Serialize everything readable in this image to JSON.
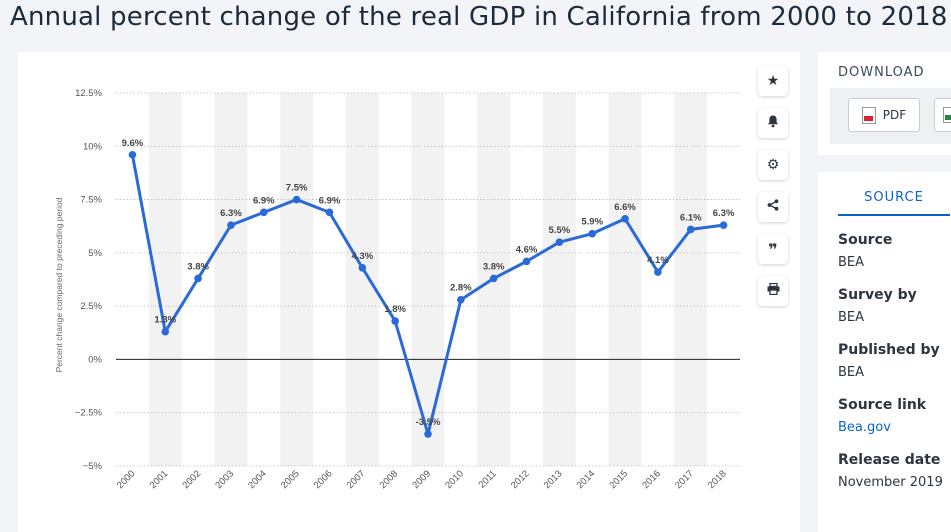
{
  "title": "Annual percent change of the real GDP in California from 2000 to 2018",
  "toolbar": {
    "icons": [
      "star-icon",
      "bell-icon",
      "gear-icon",
      "share-icon",
      "quote-icon",
      "print-icon"
    ]
  },
  "download": {
    "title": "DOWNLOAD",
    "pdf_label": "PDF"
  },
  "source_panel": {
    "tab_label": "SOURCE",
    "items": [
      {
        "label": "Source",
        "value": "BEA"
      },
      {
        "label": "Survey by",
        "value": "BEA"
      },
      {
        "label": "Published by",
        "value": "BEA"
      },
      {
        "label": "Source link",
        "value": "Bea.gov"
      },
      {
        "label": "Release date",
        "value": "November 2019"
      }
    ]
  },
  "chart_data": {
    "type": "line",
    "x": [
      "2000",
      "2001",
      "2002",
      "2003",
      "2004",
      "2005",
      "2006",
      "2007",
      "2008",
      "2009",
      "2010",
      "2011",
      "2012",
      "2013",
      "2014",
      "2015",
      "2016",
      "2017",
      "2018"
    ],
    "series": [
      {
        "values": [
          9.6,
          1.3,
          3.8,
          6.3,
          6.9,
          7.5,
          6.9,
          4.3,
          1.8,
          -3.5,
          2.8,
          3.8,
          4.6,
          5.5,
          5.9,
          6.6,
          4.1,
          6.1,
          6.3
        ]
      }
    ],
    "data_labels": [
      "9.6%",
      "1.3%",
      "3.8%",
      "6.3%",
      "6.9%",
      "7.5%",
      "6.9%",
      "4.3%",
      "1.8%",
      "-3.5%",
      "2.8%",
      "3.8%",
      "4.6%",
      "5.5%",
      "5.9%",
      "6.6%",
      "4.1%",
      "6.1%",
      "6.3%"
    ],
    "ylabel": "Percent change compared to preceding period",
    "ylim": [
      -5,
      12.5
    ],
    "yticks": [
      12.5,
      10,
      7.5,
      5,
      2.5,
      0,
      -2.5,
      -5
    ],
    "ytick_labels": [
      "12.5%",
      "10%",
      "7.5%",
      "5%",
      "2.5%",
      "0%",
      "−2.5%",
      "−5%"
    ],
    "grid": true,
    "line_color": "#2a6ad8"
  }
}
